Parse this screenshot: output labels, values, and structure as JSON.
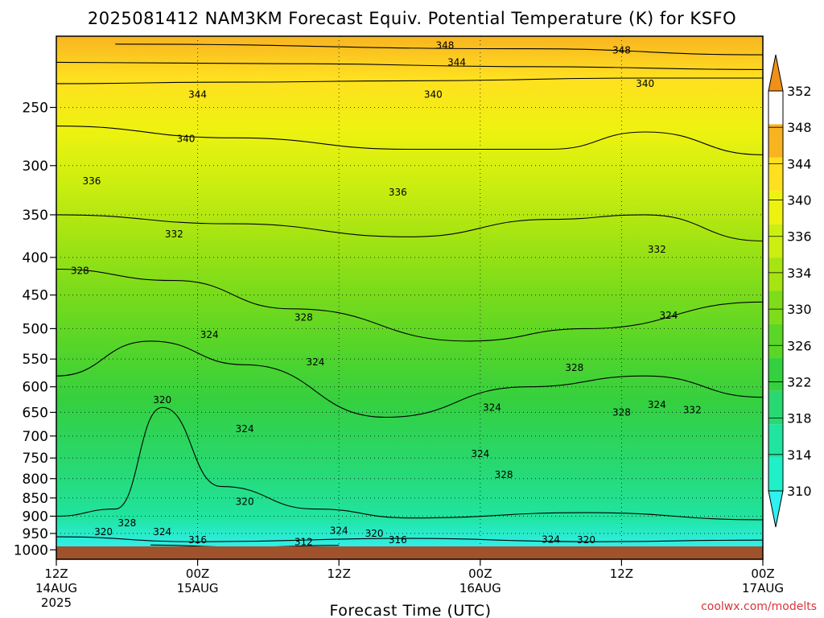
{
  "chart_data": {
    "type": "heatmap",
    "title": "2025081412 NAM3KM Forecast Equiv. Potential Temperature (K) for KSFO",
    "xlabel": "Forecast Time (UTC)",
    "ylabel": "",
    "y_axis": {
      "scale": "log",
      "inverted": true,
      "unit": "hPa",
      "range": [
        1030,
        200
      ],
      "ticks": [
        250,
        300,
        350,
        400,
        450,
        500,
        550,
        600,
        650,
        700,
        750,
        800,
        850,
        900,
        950,
        1000
      ]
    },
    "x_axis": {
      "range_hours": [
        0,
        60
      ],
      "ticks": [
        {
          "hour": 0,
          "label": "12Z",
          "sub": "14AUG",
          "sub2": "2025"
        },
        {
          "hour": 12,
          "label": "00Z",
          "sub": "15AUG",
          "sub2": ""
        },
        {
          "hour": 24,
          "label": "12Z",
          "sub": "",
          "sub2": ""
        },
        {
          "hour": 36,
          "label": "00Z",
          "sub": "16AUG",
          "sub2": ""
        },
        {
          "hour": 48,
          "label": "12Z",
          "sub": "",
          "sub2": ""
        },
        {
          "hour": 60,
          "label": "00Z",
          "sub": "17AUG",
          "sub2": ""
        }
      ]
    },
    "grid": true,
    "colorbar": {
      "position": "right",
      "labels": [
        "310",
        "314",
        "318",
        "322",
        "326",
        "330",
        "334",
        "336",
        "340",
        "344",
        "348",
        "352"
      ],
      "colors": [
        "#30f0f0",
        "#20f0c8",
        "#20e4a0",
        "#28d870",
        "#34d040",
        "#5ad626",
        "#7edc1a",
        "#a6e412",
        "#ccee10",
        "#eef210",
        "#ffe020",
        "#f8b420",
        "#f09018"
      ]
    },
    "ground_color": "#a0522d",
    "contours": [
      {
        "value": 348,
        "points": [
          [
            5,
            205
          ],
          [
            40,
            208
          ],
          [
            60,
            212
          ]
        ]
      },
      {
        "value": 344,
        "points": [
          [
            0,
            217
          ],
          [
            20,
            218
          ],
          [
            40,
            220
          ],
          [
            60,
            222
          ]
        ]
      },
      {
        "value": 340,
        "points": [
          [
            0,
            232
          ],
          [
            15,
            231
          ],
          [
            30,
            230
          ],
          [
            50,
            228
          ],
          [
            60,
            228
          ]
        ]
      },
      {
        "value": 336,
        "points": [
          [
            0,
            265
          ],
          [
            15,
            275
          ],
          [
            30,
            285
          ],
          [
            42,
            285
          ],
          [
            50,
            270
          ],
          [
            60,
            290
          ]
        ]
      },
      {
        "value": 332,
        "points": [
          [
            0,
            350
          ],
          [
            15,
            360
          ],
          [
            30,
            375
          ],
          [
            42,
            355
          ],
          [
            50,
            350
          ],
          [
            60,
            380
          ]
        ]
      },
      {
        "value": 328,
        "points": [
          [
            0,
            415
          ],
          [
            10,
            430
          ],
          [
            20,
            470
          ],
          [
            35,
            520
          ],
          [
            45,
            500
          ],
          [
            60,
            460
          ]
        ]
      },
      {
        "value": 324,
        "points": [
          [
            0,
            580
          ],
          [
            8,
            520
          ],
          [
            16,
            560
          ],
          [
            28,
            660
          ],
          [
            40,
            600
          ],
          [
            50,
            580
          ],
          [
            60,
            620
          ]
        ]
      },
      {
        "value": 320,
        "points": [
          [
            0,
            900
          ],
          [
            5,
            880
          ],
          [
            9,
            640
          ],
          [
            14,
            820
          ],
          [
            22,
            880
          ],
          [
            30,
            905
          ],
          [
            45,
            890
          ],
          [
            60,
            910
          ]
        ]
      },
      {
        "value": 316,
        "points": [
          [
            0,
            960
          ],
          [
            12,
            975
          ],
          [
            30,
            965
          ],
          [
            45,
            975
          ],
          [
            60,
            970
          ]
        ]
      },
      {
        "value": 312,
        "points": [
          [
            8,
            985
          ],
          [
            16,
            992
          ],
          [
            24,
            986
          ]
        ]
      }
    ],
    "contour_labels": [
      {
        "text": "348",
        "hour": 33,
        "p": 206
      },
      {
        "text": "348",
        "hour": 48,
        "p": 209
      },
      {
        "text": "344",
        "hour": 34,
        "p": 217
      },
      {
        "text": "340",
        "hour": 50,
        "p": 232
      },
      {
        "text": "344",
        "hour": 12,
        "p": 240
      },
      {
        "text": "340",
        "hour": 32,
        "p": 240
      },
      {
        "text": "340",
        "hour": 11,
        "p": 276
      },
      {
        "text": "336",
        "hour": 3,
        "p": 315
      },
      {
        "text": "336",
        "hour": 29,
        "p": 326
      },
      {
        "text": "332",
        "hour": 10,
        "p": 372
      },
      {
        "text": "332",
        "hour": 51,
        "p": 390
      },
      {
        "text": "328",
        "hour": 2,
        "p": 417
      },
      {
        "text": "328",
        "hour": 21,
        "p": 483
      },
      {
        "text": "324",
        "hour": 13,
        "p": 510
      },
      {
        "text": "324",
        "hour": 52,
        "p": 480
      },
      {
        "text": "324",
        "hour": 22,
        "p": 555
      },
      {
        "text": "328",
        "hour": 44,
        "p": 565
      },
      {
        "text": "320",
        "hour": 9,
        "p": 625
      },
      {
        "text": "324",
        "hour": 37,
        "p": 640
      },
      {
        "text": "324",
        "hour": 51,
        "p": 635
      },
      {
        "text": "328",
        "hour": 48,
        "p": 650
      },
      {
        "text": "332",
        "hour": 54,
        "p": 645
      },
      {
        "text": "324",
        "hour": 16,
        "p": 685
      },
      {
        "text": "324",
        "hour": 36,
        "p": 740
      },
      {
        "text": "328",
        "hour": 38,
        "p": 790
      },
      {
        "text": "320",
        "hour": 16,
        "p": 860
      },
      {
        "text": "328",
        "hour": 6,
        "p": 920
      },
      {
        "text": "320",
        "hour": 4,
        "p": 945
      },
      {
        "text": "324",
        "hour": 9,
        "p": 945
      },
      {
        "text": "324",
        "hour": 24,
        "p": 942
      },
      {
        "text": "320",
        "hour": 27,
        "p": 950
      },
      {
        "text": "316",
        "hour": 12,
        "p": 970
      },
      {
        "text": "316",
        "hour": 29,
        "p": 970
      },
      {
        "text": "312",
        "hour": 21,
        "p": 976
      },
      {
        "text": "324",
        "hour": 42,
        "p": 968
      },
      {
        "text": "320",
        "hour": 45,
        "p": 970
      }
    ]
  },
  "footer": {
    "credit": "coolwx.com/modelts"
  }
}
